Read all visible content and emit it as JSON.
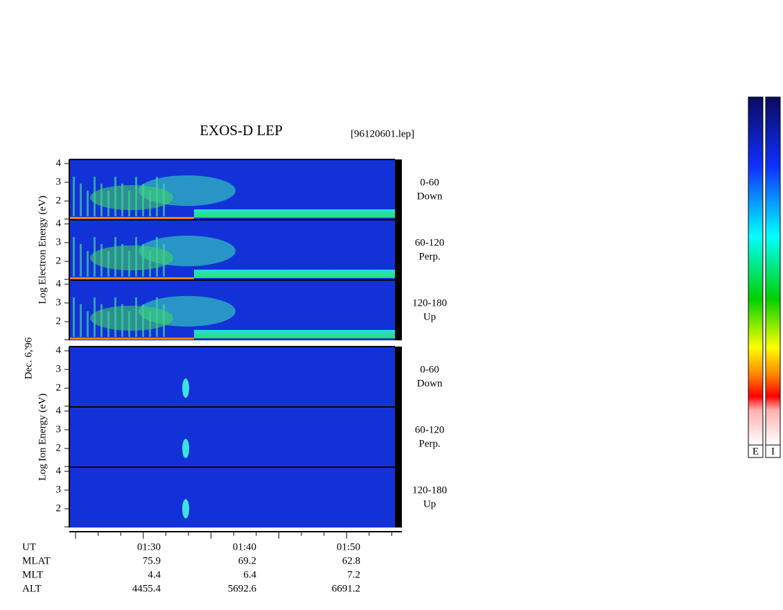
{
  "header": {
    "title": "EXOS-D LEP",
    "file": "[96120601.lep]"
  },
  "date": "Dec. 6,'96",
  "groups": [
    {
      "axis_label": "Log  Electron  Energy (eV)",
      "panels": [
        {
          "ticks": [
            "4",
            "3",
            "2"
          ],
          "range": "0-60",
          "dir": "Down"
        },
        {
          "ticks": [
            "4",
            "3",
            "2"
          ],
          "range": "60-120",
          "dir": "Perp."
        },
        {
          "ticks": [
            "4",
            "3",
            "2"
          ],
          "range": "120-180",
          "dir": "Up"
        }
      ]
    },
    {
      "axis_label": "Log  Ion  Energy (eV)",
      "panels": [
        {
          "ticks": [
            "4",
            "3",
            "2"
          ],
          "range": "0-60",
          "dir": "Down"
        },
        {
          "ticks": [
            "4",
            "3",
            "2"
          ],
          "range": "60-120",
          "dir": "Perp."
        },
        {
          "ticks": [
            "4",
            "3",
            "2"
          ],
          "range": "120-180",
          "dir": "Up"
        }
      ]
    }
  ],
  "ephemeris": {
    "rows": [
      [
        "UT",
        "01:30",
        "01:40",
        "01:50"
      ],
      [
        "MLAT",
        "75.9",
        "69.2",
        "62.8"
      ],
      [
        "MLT",
        "4.4",
        "6.4",
        "7.2"
      ],
      [
        "ALT",
        "4455.4",
        "5692.6",
        "6691.2"
      ]
    ]
  },
  "colorbars": [
    "E",
    "I"
  ]
}
